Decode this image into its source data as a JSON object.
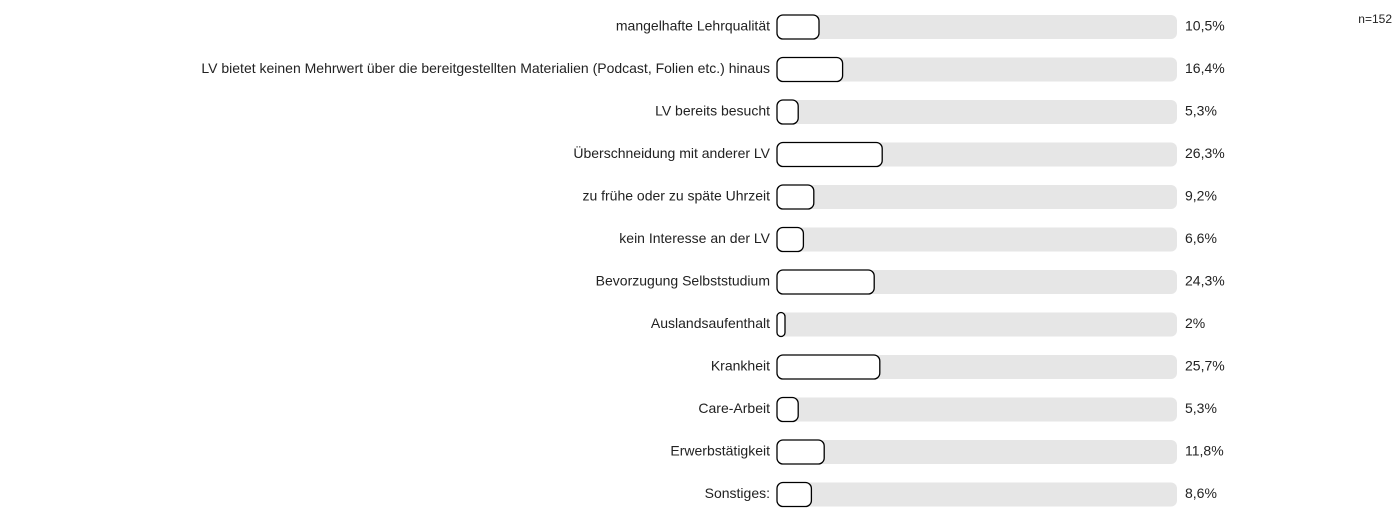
{
  "chart_data": {
    "type": "bar",
    "orientation": "horizontal",
    "note": "n=152",
    "categories": [
      "mangelhafte Lehrqualität",
      "LV bietet keinen Mehrwert über die bereitgestellten Materialien (Podcast, Folien etc.) hinaus",
      "LV bereits besucht",
      "Überschneidung mit anderer LV",
      "zu frühe oder zu späte Uhrzeit",
      "kein Interesse an der LV",
      "Bevorzugung Selbststudium",
      "Auslandsaufenthalt",
      "Krankheit",
      "Care-Arbeit",
      "Erwerbstätigkeit",
      "Sonstiges:"
    ],
    "values": [
      10.5,
      16.4,
      5.3,
      26.3,
      9.2,
      6.6,
      24.3,
      2,
      25.7,
      5.3,
      11.8,
      8.6
    ],
    "value_labels": [
      "10,5%",
      "16,4%",
      "5,3%",
      "26,3%",
      "9,2%",
      "6,6%",
      "24,3%",
      "2%",
      "25,7%",
      "5,3%",
      "11,8%",
      "8,6%"
    ],
    "color": "#ffffff",
    "xlim": [
      0,
      100
    ]
  }
}
